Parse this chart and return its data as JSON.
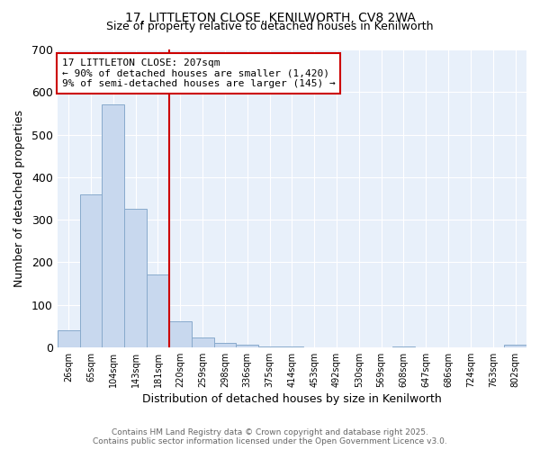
{
  "title1": "17, LITTLETON CLOSE, KENILWORTH, CV8 2WA",
  "title2": "Size of property relative to detached houses in Kenilworth",
  "xlabel": "Distribution of detached houses by size in Kenilworth",
  "ylabel": "Number of detached properties",
  "categories": [
    "26sqm",
    "65sqm",
    "104sqm",
    "143sqm",
    "181sqm",
    "220sqm",
    "259sqm",
    "298sqm",
    "336sqm",
    "375sqm",
    "414sqm",
    "453sqm",
    "492sqm",
    "530sqm",
    "569sqm",
    "608sqm",
    "647sqm",
    "686sqm",
    "724sqm",
    "763sqm",
    "802sqm"
  ],
  "values": [
    40,
    360,
    570,
    325,
    170,
    60,
    22,
    10,
    5,
    2,
    2,
    0,
    0,
    0,
    0,
    2,
    0,
    0,
    0,
    0,
    5
  ],
  "bar_color": "#c8d8ee",
  "bar_edge_color": "#88aacc",
  "background_color": "#ffffff",
  "plot_bg_color": "#e8f0fa",
  "grid_color": "#ffffff",
  "vline_color": "#cc0000",
  "vline_x_index": 5,
  "annotation_text": "17 LITTLETON CLOSE: 207sqm\n← 90% of detached houses are smaller (1,420)\n9% of semi-detached houses are larger (145) →",
  "annotation_box_color": "#ffffff",
  "annotation_border_color": "#cc0000",
  "ylim": [
    0,
    700
  ],
  "yticks": [
    0,
    100,
    200,
    300,
    400,
    500,
    600,
    700
  ],
  "footer1": "Contains HM Land Registry data © Crown copyright and database right 2025.",
  "footer2": "Contains public sector information licensed under the Open Government Licence v3.0."
}
